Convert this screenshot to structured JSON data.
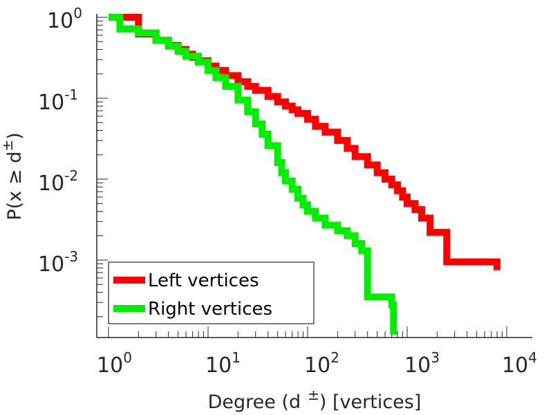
{
  "chart_data": {
    "type": "line",
    "xscale": "log",
    "yscale": "log",
    "xlim": [
      1,
      10000
    ],
    "ylim": [
      0.00012,
      1
    ],
    "grid": false,
    "legend_position": "bottom-left",
    "xlabel": {
      "main": "Degree (d",
      "sup": "±",
      "tail": ") [vertices]"
    },
    "ylabel": {
      "main": "P(x ≥ d",
      "sup": "±",
      "tail": ")"
    },
    "x_ticks": [
      {
        "base": "10",
        "exp": "0",
        "value": 1
      },
      {
        "base": "10",
        "exp": "1",
        "value": 10
      },
      {
        "base": "10",
        "exp": "2",
        "value": 100
      },
      {
        "base": "10",
        "exp": "3",
        "value": 1000
      },
      {
        "base": "10",
        "exp": "4",
        "value": 10000
      }
    ],
    "y_ticks": [
      {
        "base": "10",
        "exp": "0",
        "value": 1
      },
      {
        "base": "10",
        "exp": "-1",
        "value": 0.1
      },
      {
        "base": "10",
        "exp": "-2",
        "value": 0.01
      },
      {
        "base": "10",
        "exp": "-3",
        "value": 0.001
      }
    ],
    "series": [
      {
        "name": "Left vertices",
        "color": "#ff0000",
        "x": [
          1,
          2,
          3,
          4,
          5,
          6,
          7,
          8,
          10,
          12,
          15,
          20,
          25,
          30,
          40,
          50,
          60,
          70,
          80,
          100,
          120,
          150,
          200,
          250,
          300,
          400,
          500,
          600,
          700,
          800,
          900,
          1000,
          1200,
          1400,
          1700,
          2500,
          8000
        ],
        "y": [
          1,
          0.62,
          0.52,
          0.45,
          0.4,
          0.35,
          0.32,
          0.29,
          0.25,
          0.22,
          0.19,
          0.16,
          0.14,
          0.125,
          0.105,
          0.09,
          0.08,
          0.072,
          0.065,
          0.055,
          0.045,
          0.038,
          0.03,
          0.024,
          0.019,
          0.015,
          0.012,
          0.01,
          0.0085,
          0.0072,
          0.006,
          0.005,
          0.0042,
          0.0033,
          0.0022,
          0.00095,
          0.00075
        ]
      },
      {
        "name": "Right vertices",
        "color": "#00ee00",
        "x": [
          1,
          1.3,
          2,
          3,
          4,
          5,
          6,
          8,
          10,
          12,
          15,
          20,
          25,
          30,
          35,
          40,
          50,
          55,
          60,
          70,
          80,
          90,
          100,
          120,
          150,
          200,
          250,
          300,
          350,
          400,
          700,
          730
        ],
        "y": [
          1,
          0.72,
          0.64,
          0.52,
          0.44,
          0.38,
          0.33,
          0.28,
          0.22,
          0.18,
          0.14,
          0.095,
          0.068,
          0.048,
          0.036,
          0.026,
          0.016,
          0.012,
          0.0095,
          0.0075,
          0.0058,
          0.0048,
          0.004,
          0.0033,
          0.0027,
          0.0023,
          0.002,
          0.0016,
          0.0013,
          0.00035,
          0.00028,
          0.00012
        ]
      }
    ]
  }
}
